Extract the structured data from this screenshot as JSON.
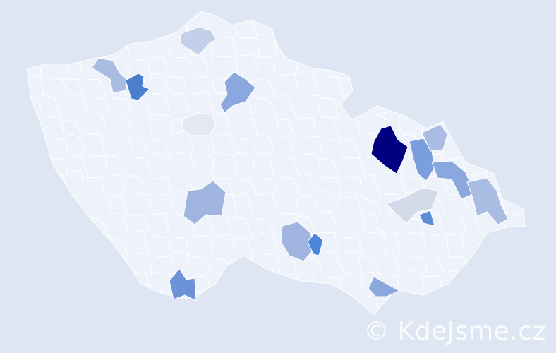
{
  "map": {
    "background_color": "#dde6f2",
    "base_fill": "#eef2fa",
    "border_color": "#ffffff",
    "highlighted_regions": [
      {
        "name": "region-darkest",
        "color": "#000080"
      },
      {
        "name": "region-north-west-a",
        "color": "#a9bde3"
      },
      {
        "name": "region-north-west-b",
        "color": "#4a7fd0"
      },
      {
        "name": "region-north",
        "color": "#c4d0ea"
      },
      {
        "name": "region-north-central",
        "color": "#8ba8de"
      },
      {
        "name": "region-central-grey",
        "color": "#e4e8f0"
      },
      {
        "name": "region-south-west",
        "color": "#9fb5e0"
      },
      {
        "name": "region-south",
        "color": "#6c93d8"
      },
      {
        "name": "region-south-central",
        "color": "#9fb5e0"
      },
      {
        "name": "region-south-central-b",
        "color": "#4a87d8"
      },
      {
        "name": "region-south-east",
        "color": "#8ba8de"
      },
      {
        "name": "region-east-a",
        "color": "#7a9fdc"
      },
      {
        "name": "region-east-b",
        "color": "#a9bde3"
      },
      {
        "name": "region-east-c",
        "color": "#8ba8de"
      },
      {
        "name": "region-east-light",
        "color": "#d3dbeb"
      },
      {
        "name": "region-east-small",
        "color": "#5b8dd8"
      },
      {
        "name": "region-far-east",
        "color": "#a9bde3"
      }
    ]
  },
  "watermark": "© KdeJsme.cz"
}
